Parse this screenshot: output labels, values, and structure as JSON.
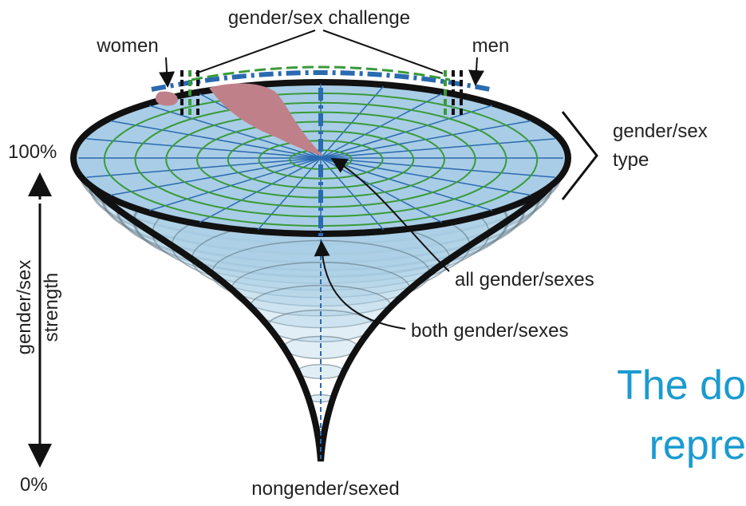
{
  "title": "gender/sex challenge",
  "labels": {
    "women": "women",
    "men": "men",
    "type": [
      "gender/sex",
      "type"
    ],
    "top_percent": "100%",
    "bottom_percent": "0%",
    "strength": [
      "gender/sex",
      "strength"
    ],
    "all": "all gender/sexes",
    "both": "both gender/sexes",
    "bottom": "nongender/sexed"
  },
  "caption": [
    "The do",
    "repre"
  ]
}
